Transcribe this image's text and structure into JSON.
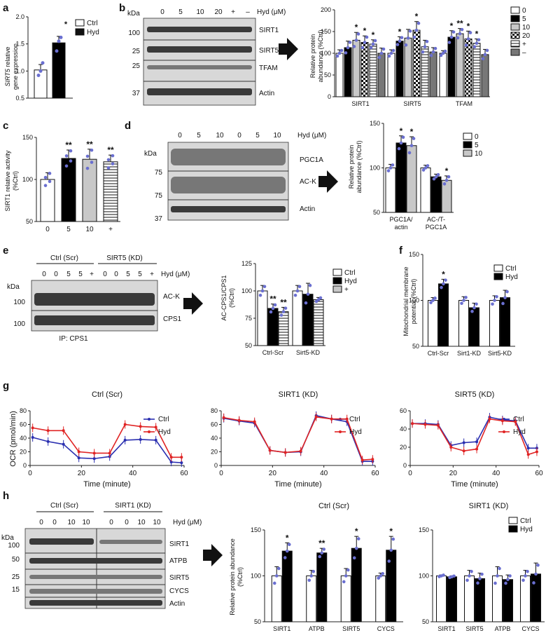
{
  "panels": {
    "a": {
      "label": "a",
      "ylabel_gene": "SIRT5",
      "ylabel_rest": " relative",
      "ylabel2": "gene expression",
      "legend": [
        "Ctrl",
        "Hyd"
      ],
      "star": "*",
      "chart_data": {
        "type": "bar",
        "categories": [
          "Ctrl",
          "Hyd"
        ],
        "values": [
          1.02,
          1.52
        ],
        "errors": [
          0.1,
          0.12
        ],
        "ylim": [
          0.5,
          2.0
        ],
        "yticks": [
          "0.5",
          "1.0",
          "1.5",
          "2.0"
        ],
        "points": [
          [
            0.92,
            1.0,
            1.15
          ],
          [
            1.37,
            1.55,
            1.62
          ]
        ]
      }
    },
    "b": {
      "label": "b",
      "kda": "kDa",
      "lanes": [
        "0",
        "5",
        "10",
        "20",
        "+",
        "–"
      ],
      "unit": "Hyd (μM)",
      "markers": [
        "100",
        "25",
        "25",
        "37"
      ],
      "bands": [
        "SIRT1",
        "SIRT5",
        "TFAM",
        "Actin"
      ],
      "ylabel": "Relative protein",
      "ylabel2": "abundance (%Ctrl)",
      "legend": [
        "0",
        "5",
        "10",
        "20",
        "+",
        "–"
      ],
      "chart_data": {
        "type": "bar",
        "categories": [
          "SIRT1",
          "SIRT5",
          "TFAM"
        ],
        "ylim": [
          0,
          200
        ],
        "yticks": [
          "0",
          "50",
          "100",
          "150",
          "200"
        ],
        "series": [
          {
            "name": "0",
            "values": [
              100,
              100,
              100
            ],
            "errors": [
              8,
              8,
              6
            ]
          },
          {
            "name": "5",
            "values": [
              113,
              128,
              137
            ],
            "errors": [
              15,
              10,
              15
            ]
          },
          {
            "name": "10",
            "values": [
              130,
              135,
              145
            ],
            "errors": [
              18,
              20,
              12
            ]
          },
          {
            "name": "20",
            "values": [
              125,
              153,
              133
            ],
            "errors": [
              15,
              20,
              18
            ]
          },
          {
            "name": "+",
            "values": [
              121,
              115,
              123
            ],
            "errors": [
              10,
              15,
              10
            ]
          },
          {
            "name": "–",
            "values": [
              100,
              103,
              97
            ],
            "errors": [
              12,
              10,
              12
            ]
          }
        ],
        "stars": [
          [
            "",
            "",
            "*",
            "*",
            "*",
            ""
          ],
          [
            "",
            "*",
            "",
            "*",
            "",
            ""
          ],
          [
            "",
            "*",
            "**",
            "*",
            "*",
            ""
          ]
        ]
      }
    },
    "c": {
      "label": "c",
      "ylabel": "SIRT1 relative activity",
      "ylabel2": "(%Ctrl)",
      "chart_data": {
        "type": "bar",
        "categories": [
          "0",
          "5",
          "10",
          "+"
        ],
        "values": [
          100,
          125,
          124,
          121
        ],
        "errors": [
          8,
          10,
          12,
          8
        ],
        "ylim": [
          50,
          150
        ],
        "yticks": [
          "50",
          "100",
          "150"
        ],
        "stars": [
          "",
          "**",
          "**",
          "**"
        ]
      }
    },
    "d": {
      "label": "d",
      "kda": "kDa",
      "lanes": [
        "0",
        "5",
        "10",
        "0",
        "5",
        "10"
      ],
      "unit": "Hyd (μM)",
      "markers": [
        "75",
        "75",
        "37"
      ],
      "bands": [
        "PGC1A",
        "AC-K",
        "Actin"
      ],
      "ylabel": "Relative protein",
      "ylabel2": "abundance (%Ctrl)",
      "legend": [
        "0",
        "5",
        "10"
      ],
      "chart_data": {
        "type": "bar",
        "categories": [
          "PGC1A/\nactin",
          "AC-/T-\nPGC1A"
        ],
        "ylim": [
          50,
          150
        ],
        "yticks": [
          "50",
          "100",
          "150"
        ],
        "series": [
          {
            "name": "0",
            "values": [
              100,
              100
            ],
            "errors": [
              4,
              3
            ]
          },
          {
            "name": "5",
            "values": [
              128,
              90
            ],
            "errors": [
              8,
              3
            ]
          },
          {
            "name": "10",
            "values": [
              125,
              86
            ],
            "errors": [
              10,
              5
            ]
          }
        ],
        "stars": [
          [
            "",
            "*",
            "*"
          ],
          [
            "",
            "",
            "*"
          ]
        ],
        "cat_line1": [
          "PGC1A/",
          "AC-/T-"
        ],
        "cat_line2": [
          "actin",
          "PGC1A"
        ]
      }
    },
    "e": {
      "label": "e",
      "kda": "kDa",
      "groups": [
        "Ctrl (Scr)",
        "SIRT5 (KD)"
      ],
      "lanes": [
        "0",
        "0",
        "5",
        "5",
        "+",
        "0",
        "0",
        "5",
        "5",
        "+"
      ],
      "unit": "Hyd (μM)",
      "markers": [
        "100",
        "100"
      ],
      "bands": [
        "AC-K",
        "CPS1"
      ],
      "ip": "IP: CPS1",
      "ylabel": "AC-CPS1/CPS1",
      "ylabel2": "(%Ctrl)",
      "legend": [
        "Ctrl",
        "Hyd",
        "+"
      ],
      "chart_data": {
        "type": "bar",
        "categories": [
          "Ctrl-Scr",
          "Sirt5-KD"
        ],
        "ylim": [
          50,
          125
        ],
        "yticks": [
          "50",
          "75",
          "100",
          "125"
        ],
        "series": [
          {
            "name": "Ctrl",
            "values": [
              100,
              100
            ],
            "errors": [
              5,
              5
            ]
          },
          {
            "name": "Hyd",
            "values": [
              84,
              97
            ],
            "errors": [
              4,
              10
            ]
          },
          {
            "name": "+",
            "values": [
              81,
              92
            ],
            "errors": [
              4,
              2
            ]
          }
        ],
        "stars": [
          [
            "",
            "**",
            "**"
          ],
          [
            "",
            "",
            ""
          ]
        ]
      }
    },
    "f": {
      "label": "f",
      "ylabel": "Mitochondrial membrane",
      "ylabel2": "potential (%Ctrl)",
      "legend": [
        "Ctrl",
        "Hyd"
      ],
      "chart_data": {
        "type": "bar",
        "categories": [
          "Ctrl-Scr",
          "Sirt1-KD",
          "Sirt5-KD"
        ],
        "ylim": [
          50,
          150
        ],
        "yticks": [
          "50",
          "100",
          "150"
        ],
        "series": [
          {
            "name": "Ctrl",
            "values": [
              100,
              100,
              100
            ],
            "errors": [
              3,
              4,
              5
            ]
          },
          {
            "name": "Hyd",
            "values": [
              118,
              92,
              103
            ],
            "errors": [
              5,
              5,
              8
            ]
          }
        ],
        "stars": [
          [
            "",
            "*"
          ],
          [
            "",
            ""
          ],
          [
            "",
            ""
          ]
        ]
      }
    },
    "g": {
      "label": "g",
      "ylabel": "OCR (pmol/min)",
      "xlabel": "Time (minute)",
      "legend": [
        "Ctrl",
        "Hyd"
      ],
      "chart_data": [
        {
          "type": "line",
          "title": "Ctrl (Scr)",
          "x": [
            1,
            7,
            13,
            19,
            25,
            31,
            37,
            43,
            49,
            55,
            59
          ],
          "ylim": [
            0,
            80
          ],
          "yticks": [
            "0",
            "20",
            "40",
            "60",
            "80"
          ],
          "xticks": [
            "0",
            "20",
            "40",
            "60"
          ],
          "series": [
            {
              "name": "Ctrl",
              "values": [
                41,
                35,
                31,
                11,
                10,
                13,
                37,
                38,
                37,
                5,
                4
              ]
            },
            {
              "name": "Hyd",
              "values": [
                55,
                51,
                51,
                20,
                18,
                18,
                60,
                57,
                56,
                12,
                12
              ]
            }
          ]
        },
        {
          "type": "line",
          "title": "SIRT1 (KD)",
          "x": [
            1,
            7,
            13,
            19,
            25,
            31,
            37,
            43,
            49,
            55,
            59
          ],
          "ylim": [
            0,
            80
          ],
          "yticks": [
            "0",
            "20",
            "40",
            "60",
            "80"
          ],
          "xticks": [
            "0",
            "20",
            "40",
            "60"
          ],
          "series": [
            {
              "name": "Ctrl",
              "values": [
                69,
                65,
                62,
                22,
                19,
                20,
                73,
                68,
                64,
                6,
                6
              ]
            },
            {
              "name": "Hyd",
              "values": [
                70,
                66,
                64,
                22,
                19,
                21,
                71,
                68,
                68,
                8,
                9
              ]
            }
          ]
        },
        {
          "type": "line",
          "title": "SIRT5 (KD)",
          "x": [
            1,
            7,
            13,
            19,
            25,
            31,
            37,
            43,
            49,
            55,
            59
          ],
          "ylim": [
            0,
            60
          ],
          "yticks": [
            "0",
            "20",
            "40",
            "60"
          ],
          "xticks": [
            "0",
            "20",
            "40",
            "60"
          ],
          "series": [
            {
              "name": "Ctrl",
              "values": [
                46,
                46,
                45,
                22,
                25,
                26,
                53,
                50,
                49,
                19,
                19
              ]
            },
            {
              "name": "Hyd",
              "values": [
                46,
                45,
                44,
                20,
                16,
                18,
                51,
                49,
                48,
                12,
                15
              ]
            }
          ]
        }
      ]
    },
    "h": {
      "label": "h",
      "kda": "kDa",
      "groups": [
        "Ctrl (Scr)",
        "SIRT1 (KD)"
      ],
      "lanes": [
        "0",
        "0",
        "10",
        "10",
        "0",
        "0",
        "10",
        "10"
      ],
      "unit": "Hyd (μM)",
      "markers": [
        "100",
        "50",
        "25",
        "15"
      ],
      "bands": [
        "SIRT1",
        "ATPB",
        "SIRT5",
        "CYCS",
        "Actin"
      ],
      "ylabel": "Relative protein abundance",
      "ylabel2": "(%Ctrl)",
      "legend": [
        "Ctrl",
        "Hyd"
      ],
      "chart_data": [
        {
          "type": "bar",
          "title": "Ctrl (Scr)",
          "categories": [
            "SIRT1",
            "ATPB",
            "SIRT5",
            "CYCS"
          ],
          "ylim": [
            50,
            150
          ],
          "yticks": [
            "50",
            "100",
            "150"
          ],
          "series": [
            {
              "name": "Ctrl",
              "values": [
                100,
                100,
                100,
                100
              ],
              "errors": [
                10,
                6,
                8,
                3
              ]
            },
            {
              "name": "Hyd",
              "values": [
                127,
                125,
                130,
                128
              ],
              "errors": [
                9,
                5,
                13,
                15
              ]
            }
          ],
          "stars": [
            "*",
            "**",
            "*",
            "*"
          ]
        },
        {
          "type": "bar",
          "title": "SIRT1 (KD)",
          "categories": [
            "SIRT1",
            "SIRT5",
            "ATPB",
            "CYCS"
          ],
          "ylim": [
            50,
            150
          ],
          "yticks": [
            "50",
            "100",
            "150"
          ],
          "series": [
            {
              "name": "Ctrl",
              "values": [
                100,
                100,
                100,
                100
              ],
              "errors": [
                1,
                6,
                10,
                6
              ]
            },
            {
              "name": "Hyd",
              "values": [
                99,
                97,
                96,
                102
              ],
              "errors": [
                1,
                6,
                5,
                12
              ]
            }
          ],
          "stars": [
            "",
            "",
            "",
            ""
          ]
        }
      ]
    }
  },
  "colors": {
    "ctrl": "#ffffff",
    "hyd": "#000000",
    "grey": "#c8c8c8",
    "dark": "#777777",
    "blue": "#2a2fb0",
    "red": "#e02424",
    "dot": "#6a6fd0"
  }
}
